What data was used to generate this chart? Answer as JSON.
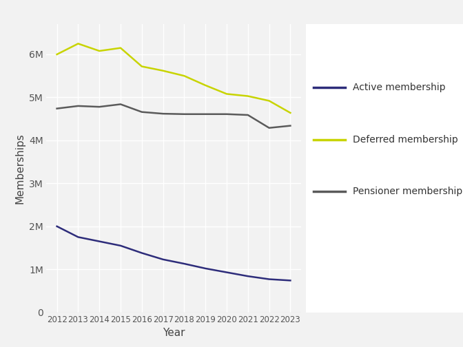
{
  "years": [
    2012,
    2013,
    2014,
    2015,
    2016,
    2017,
    2018,
    2019,
    2020,
    2021,
    2022,
    2023
  ],
  "active": [
    2000000,
    1750000,
    1650000,
    1550000,
    1380000,
    1230000,
    1130000,
    1020000,
    930000,
    840000,
    770000,
    740000
  ],
  "deferred": [
    6000000,
    6250000,
    6080000,
    6150000,
    5720000,
    5620000,
    5500000,
    5280000,
    5080000,
    5030000,
    4920000,
    4640000
  ],
  "pensioner": [
    4740000,
    4800000,
    4780000,
    4840000,
    4660000,
    4620000,
    4610000,
    4610000,
    4610000,
    4590000,
    4290000,
    4340000
  ],
  "active_color": "#2d2c7a",
  "deferred_color": "#c8d400",
  "pensioner_color": "#5a5a5a",
  "xlabel": "Year",
  "ylabel": "Memberships",
  "background_color": "#f2f2f2",
  "plot_background": "#f2f2f2",
  "legend_background": "#ffffff",
  "line_width": 1.8,
  "legend_labels": [
    "Active membership",
    "Deferred membership",
    "Pensioner membership"
  ],
  "yticks": [
    0,
    1000000,
    2000000,
    3000000,
    4000000,
    5000000,
    6000000
  ],
  "ytick_labels": [
    "0",
    "1M",
    "2M",
    "3M",
    "4M",
    "5M",
    "6M"
  ],
  "ylim": [
    0,
    6700000
  ],
  "xlim": [
    2011.5,
    2023.5
  ]
}
